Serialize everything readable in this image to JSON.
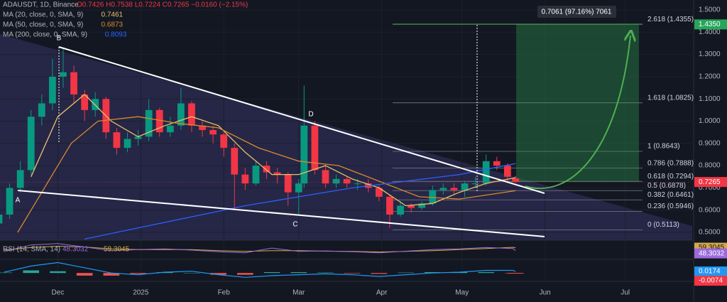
{
  "chart_data": {
    "type": "candlestick",
    "title": "ADAUSDT, 1D, Binance",
    "ohlc_legend": "O0.7426 H0.7538 L0.7224 C0.7265 −0.0160 (−2.15%)",
    "up_color": "#089981",
    "down_color": "#f23645",
    "grid": true,
    "xlim": [
      8.4,
      267
    ],
    "xticks": [
      {
        "value": 30,
        "label": "Dec"
      },
      {
        "value": 61,
        "label": "2025"
      },
      {
        "value": 92,
        "label": "Feb"
      },
      {
        "value": 120,
        "label": "Mar"
      },
      {
        "value": 151,
        "label": "Apr"
      },
      {
        "value": 181,
        "label": "May"
      },
      {
        "value": 212,
        "label": "Jun"
      },
      {
        "value": 242,
        "label": "Jul"
      }
    ],
    "ylim": [
      0.4649,
      1.5447
    ],
    "yticks": [
      {
        "value": 0.5,
        "label": "0.5000"
      },
      {
        "value": 0.6,
        "label": "0.6000"
      },
      {
        "value": 0.7,
        "label": "0.7000"
      },
      {
        "value": 0.8,
        "label": "0.8000"
      },
      {
        "value": 0.9,
        "label": "0.9000"
      },
      {
        "value": 1.0,
        "label": "1.0000"
      },
      {
        "value": 1.1,
        "label": "1.1000"
      },
      {
        "value": 1.2,
        "label": "1.2000"
      },
      {
        "value": 1.3,
        "label": "1.3000"
      },
      {
        "value": 1.4,
        "label": "1.4000"
      },
      {
        "value": 1.5,
        "label": "1.5000"
      }
    ],
    "x": [
      8,
      12,
      16,
      20,
      24,
      28,
      32,
      36,
      40,
      44,
      48,
      52,
      56,
      60,
      64,
      68,
      72,
      76,
      80,
      84,
      88,
      92,
      96,
      100,
      104,
      108,
      112,
      116,
      120,
      122,
      126,
      130,
      134,
      138,
      142,
      146,
      150,
      154,
      158,
      162,
      166,
      170,
      174,
      178,
      182,
      186,
      190,
      194,
      198,
      201
    ],
    "open": [
      0.54,
      0.58,
      0.7,
      0.78,
      1.02,
      1.08,
      1.2,
      1.22,
      1.12,
      1.05,
      1.1,
      0.95,
      0.88,
      0.92,
      0.93,
      1.05,
      0.95,
      0.98,
      1.08,
      0.98,
      0.96,
      0.94,
      0.88,
      0.76,
      0.72,
      0.8,
      0.77,
      0.76,
      0.68,
      0.72,
      0.98,
      0.78,
      0.72,
      0.74,
      0.72,
      0.72,
      0.7,
      0.66,
      0.58,
      0.62,
      0.61,
      0.63,
      0.69,
      0.7,
      0.69,
      0.72,
      0.72,
      0.82,
      0.8,
      0.7426
    ],
    "high": [
      0.6,
      0.72,
      0.82,
      1.05,
      1.12,
      1.28,
      1.33,
      1.25,
      1.14,
      1.13,
      1.11,
      0.97,
      0.95,
      0.96,
      1.1,
      1.06,
      1.02,
      1.15,
      1.09,
      1.0,
      0.98,
      0.95,
      0.9,
      0.79,
      0.82,
      0.82,
      0.79,
      0.77,
      0.74,
      1.16,
      1.0,
      0.8,
      0.76,
      0.75,
      0.74,
      0.74,
      0.71,
      0.67,
      0.64,
      0.63,
      0.64,
      0.71,
      0.72,
      0.72,
      0.73,
      0.75,
      0.85,
      0.84,
      0.81,
      0.7538
    ],
    "low": [
      0.52,
      0.56,
      0.68,
      0.76,
      0.98,
      1.05,
      1.15,
      1.08,
      1.0,
      1.02,
      0.92,
      0.85,
      0.86,
      0.89,
      0.91,
      0.93,
      0.93,
      0.96,
      0.95,
      0.93,
      0.9,
      0.84,
      0.6,
      0.69,
      0.71,
      0.74,
      0.72,
      0.62,
      0.58,
      0.7,
      0.76,
      0.7,
      0.7,
      0.7,
      0.69,
      0.68,
      0.64,
      0.52,
      0.57,
      0.59,
      0.6,
      0.62,
      0.67,
      0.67,
      0.66,
      0.7,
      0.71,
      0.78,
      0.73,
      0.7224
    ],
    "close": [
      0.58,
      0.7,
      0.78,
      1.02,
      1.08,
      1.2,
      1.22,
      1.12,
      1.05,
      1.1,
      0.95,
      0.88,
      0.92,
      0.93,
      1.05,
      0.95,
      0.98,
      1.08,
      0.98,
      0.96,
      0.94,
      0.88,
      0.76,
      0.72,
      0.8,
      0.77,
      0.76,
      0.68,
      0.72,
      0.98,
      0.78,
      0.72,
      0.74,
      0.72,
      0.72,
      0.7,
      0.66,
      0.58,
      0.62,
      0.61,
      0.63,
      0.69,
      0.7,
      0.69,
      0.72,
      0.72,
      0.82,
      0.8,
      0.75,
      0.7265
    ],
    "moving_averages": [
      {
        "name": "MA (20, close, 0, SMA, 9)",
        "color": "#e8c26a",
        "x": [
          20,
          30,
          40,
          50,
          60,
          70,
          80,
          90,
          100,
          110,
          120,
          130,
          140,
          150,
          160,
          170,
          180,
          190,
          201
        ],
        "values": [
          0.75,
          1.02,
          1.12,
          1.0,
          0.93,
          0.98,
          1.02,
          0.98,
          0.86,
          0.76,
          0.76,
          0.8,
          0.74,
          0.7,
          0.62,
          0.63,
          0.68,
          0.72,
          0.7461
        ]
      },
      {
        "name": "MA (50, close, 0, SMA, 9)",
        "color": "#d68a2e",
        "x": [
          15,
          25,
          35,
          45,
          60,
          75,
          90,
          105,
          120,
          135,
          150,
          165,
          180,
          201
        ],
        "values": [
          0.5,
          0.7,
          0.9,
          1.0,
          1.02,
          0.99,
          0.97,
          0.88,
          0.82,
          0.8,
          0.73,
          0.66,
          0.65,
          0.6873
        ]
      },
      {
        "name": "MA (200, close, 0, SMA, 9)",
        "color": "#2962ff",
        "x": [
          40,
          60,
          80,
          100,
          120,
          140,
          160,
          180,
          201
        ],
        "values": [
          0.47,
          0.52,
          0.57,
          0.62,
          0.66,
          0.7,
          0.73,
          0.76,
          0.8093
        ]
      }
    ],
    "fib_levels": [
      {
        "label": "2.618 (1.4355)",
        "value": 1.4355
      },
      {
        "label": "1.618 (1.0825)",
        "value": 1.0825
      },
      {
        "label": "1 (0.8643)",
        "value": 0.8643
      },
      {
        "label": "0.786 (0.7888)",
        "value": 0.7888
      },
      {
        "label": "0.618 (0.7294)",
        "value": 0.7294
      },
      {
        "label": "0.5 (0.6878)",
        "value": 0.6878
      },
      {
        "label": "0.382 (0.6461)",
        "value": 0.6461
      },
      {
        "label": "0.236 (0.5946)",
        "value": 0.5946
      },
      {
        "label": "0 (0.5113)",
        "value": 0.5113
      }
    ],
    "target": {
      "value": 1.435,
      "label": "1.4350"
    },
    "measure": "0.7061 (97.16%) 7061",
    "pattern_points": [
      "A",
      "B",
      "C",
      "D"
    ],
    "rsi": {
      "title": "RSI (14, SMA, 14)",
      "color": "#9c6ade",
      "ma_color": "#d4a84b",
      "ylim": [
        20,
        80
      ],
      "x": [
        10,
        20,
        30,
        40,
        50,
        60,
        70,
        80,
        90,
        100,
        110,
        120,
        130,
        140,
        150,
        160,
        170,
        180,
        190,
        200,
        201
      ],
      "values": [
        45,
        70,
        75,
        62,
        48,
        52,
        55,
        50,
        44,
        40,
        58,
        45,
        47,
        44,
        40,
        46,
        52,
        55,
        60,
        56,
        48.3032
      ],
      "ma_values": [
        50,
        60,
        65,
        62,
        55,
        52,
        52,
        52,
        48,
        45,
        48,
        48,
        46,
        45,
        43,
        45,
        48,
        52,
        56,
        61,
        59.3045
      ]
    },
    "macd": {
      "color": "#2196f3",
      "ylim": [
        -0.08,
        0.14
      ],
      "x": [
        10,
        20,
        30,
        40,
        50,
        60,
        70,
        80,
        90,
        100,
        110,
        120,
        130,
        140,
        150,
        160,
        170,
        180,
        190,
        200,
        201
      ],
      "macd": [
        0.01,
        0.08,
        0.12,
        0.06,
        0.0,
        -0.02,
        0.01,
        0.02,
        -0.02,
        -0.05,
        -0.03,
        -0.02,
        -0.01,
        -0.02,
        -0.04,
        -0.02,
        0.0,
        0.01,
        0.03,
        0.03,
        0.0174
      ],
      "histogram": [
        0.005,
        0.03,
        0.02,
        -0.03,
        -0.03,
        -0.01,
        0.01,
        0.0,
        -0.02,
        -0.02,
        0.01,
        0.01,
        0.005,
        -0.005,
        -0.01,
        0.005,
        0.01,
        0.01,
        0.01,
        -0.002,
        -0.0074
      ]
    }
  }
}
